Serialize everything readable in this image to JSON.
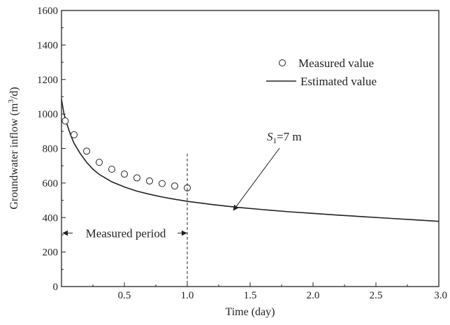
{
  "chart_data": {
    "type": "line",
    "xlabel": "Time (day)",
    "ylabel_parts": {
      "prefix": "Groundwater inflow (m",
      "sup": "3",
      "suffix": "/d)"
    },
    "xlim": [
      0,
      3.0
    ],
    "ylim": [
      0,
      1600
    ],
    "x_ticks": [
      0.5,
      1.0,
      1.5,
      2.0,
      2.5,
      3.0
    ],
    "x_tick_labels": [
      "0.5",
      "1.0",
      "1.5",
      "2.0",
      "2.5",
      "3.0"
    ],
    "y_ticks": [
      0,
      200,
      400,
      600,
      800,
      1000,
      1200,
      1400,
      1600
    ],
    "y_tick_labels": [
      "0",
      "200",
      "400",
      "600",
      "800",
      "1000",
      "1200",
      "1400",
      "1600"
    ],
    "legend_position": "upper-right",
    "series": [
      {
        "name": "Measured value",
        "style": "open-circle",
        "x": [
          0.03,
          0.1,
          0.2,
          0.3,
          0.4,
          0.5,
          0.6,
          0.7,
          0.8,
          0.9,
          1.0
        ],
        "y": [
          960,
          880,
          785,
          720,
          680,
          652,
          630,
          612,
          597,
          583,
          572
        ]
      },
      {
        "name": "Estimated value",
        "style": "solid-line",
        "x": [
          0.0,
          0.02,
          0.04,
          0.06,
          0.08,
          0.1,
          0.15,
          0.2,
          0.25,
          0.3,
          0.4,
          0.5,
          0.6,
          0.7,
          0.8,
          0.9,
          1.0,
          1.2,
          1.4,
          1.6,
          1.8,
          2.0,
          2.2,
          2.4,
          2.6,
          2.8,
          3.0
        ],
        "y": [
          1085,
          1000,
          950,
          905,
          865,
          830,
          770,
          720,
          680,
          650,
          607,
          577,
          553,
          535,
          519,
          506,
          494,
          475,
          459,
          446,
          434,
          424,
          414,
          405,
          396,
          387,
          378
        ]
      }
    ],
    "annotations": {
      "s1_base": "S",
      "s1_sub": "1",
      "s1_rest": "=7 m",
      "s1_target": [
        1.4,
        450
      ],
      "measured_period": "Measured period",
      "measured_period_range": [
        0,
        1.0
      ],
      "vline_x": 1.0,
      "vline_top": 770
    }
  }
}
